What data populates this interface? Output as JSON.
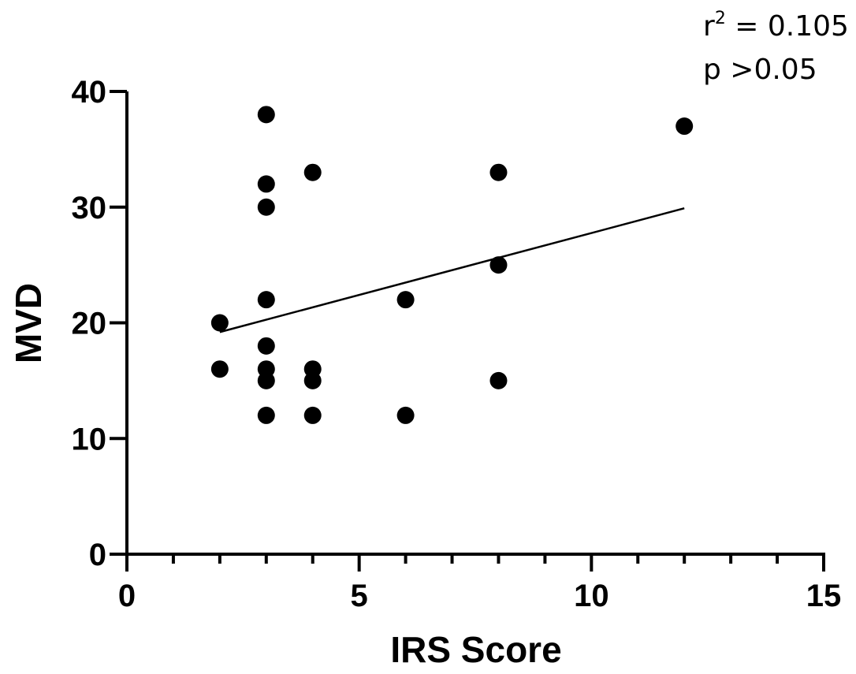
{
  "chart_data": {
    "type": "scatter",
    "title": "",
    "xlabel": "IRS Score",
    "ylabel": "MVD",
    "xlim": [
      0,
      15
    ],
    "ylim": [
      0,
      40
    ],
    "x_ticks": [
      0,
      5,
      10,
      15
    ],
    "x_minor_step": 1,
    "y_ticks": [
      0,
      10,
      20,
      30,
      40
    ],
    "grid": false,
    "legend": "none",
    "points": [
      {
        "x": 2,
        "y": 20
      },
      {
        "x": 2,
        "y": 16
      },
      {
        "x": 3,
        "y": 38
      },
      {
        "x": 3,
        "y": 32
      },
      {
        "x": 3,
        "y": 30
      },
      {
        "x": 3,
        "y": 22
      },
      {
        "x": 3,
        "y": 18
      },
      {
        "x": 3,
        "y": 16
      },
      {
        "x": 3,
        "y": 15
      },
      {
        "x": 3,
        "y": 12
      },
      {
        "x": 4,
        "y": 33
      },
      {
        "x": 4,
        "y": 16
      },
      {
        "x": 4,
        "y": 15
      },
      {
        "x": 4,
        "y": 12
      },
      {
        "x": 6,
        "y": 22
      },
      {
        "x": 6,
        "y": 12
      },
      {
        "x": 8,
        "y": 33
      },
      {
        "x": 8,
        "y": 25
      },
      {
        "x": 8,
        "y": 15
      },
      {
        "x": 12,
        "y": 37
      }
    ],
    "regression_line": {
      "x": [
        2,
        12
      ],
      "y": [
        19.2,
        29.9
      ]
    },
    "annotations": {
      "r2_prefix": "r",
      "r2_exponent": "2",
      "r2_value": " = 0.105",
      "p_text": "p >0.05"
    },
    "marker_color": "#000000",
    "line_color": "#000000"
  }
}
